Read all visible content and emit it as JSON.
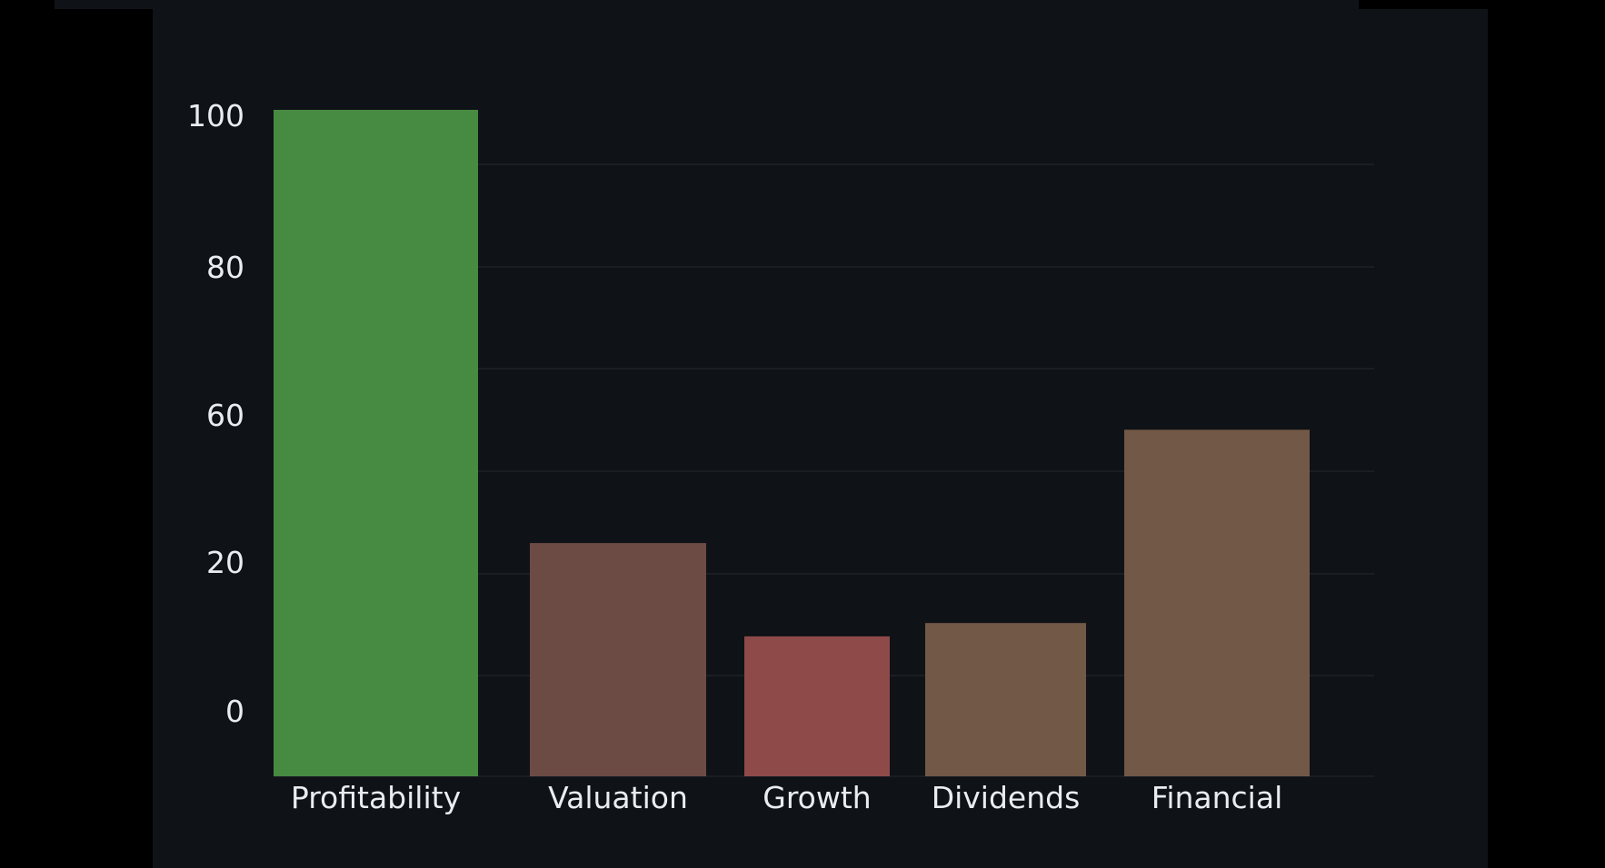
{
  "chart_data": {
    "type": "bar",
    "categories": [
      "Profitability",
      "Valuation",
      "Growth",
      "Dividends",
      "Financial"
    ],
    "values": [
      100,
      35,
      21,
      23,
      52
    ],
    "colors": [
      "#478a41",
      "#6d4b45",
      "#8e4a49",
      "#725847",
      "#725846"
    ],
    "y_tick_labels": [
      "100",
      "80",
      "60",
      "20",
      "0"
    ],
    "grid": true,
    "legend": "none"
  }
}
